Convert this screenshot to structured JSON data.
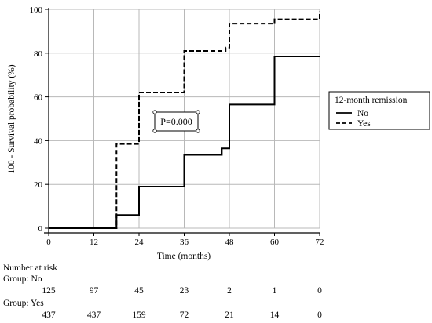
{
  "chart_data": {
    "type": "line",
    "step": true,
    "xlabel": "Time (months)",
    "ylabel": "100 - Survival probability (%)",
    "xlim": [
      0,
      72
    ],
    "ylim": [
      0,
      100
    ],
    "xticks": [
      0,
      12,
      24,
      36,
      48,
      60,
      72
    ],
    "yticks": [
      0,
      20,
      40,
      60,
      80,
      100
    ],
    "grid": true,
    "legend": {
      "title": "12-month remission",
      "placement": "right",
      "entries": [
        "No",
        "Yes"
      ]
    },
    "annotation": "P=0.000",
    "series": [
      {
        "name": "No",
        "line_style": "solid",
        "x": [
          0,
          18,
          18,
          24,
          24,
          36,
          36,
          46,
          46,
          48,
          48,
          60,
          60,
          72
        ],
        "y": [
          0,
          0,
          6,
          6,
          19,
          19,
          33.5,
          33.5,
          36.5,
          36.5,
          56.5,
          56.5,
          78.5,
          78.5
        ]
      },
      {
        "name": "Yes",
        "line_style": "dashed",
        "x": [
          0,
          18,
          18,
          24,
          24,
          36,
          36,
          47,
          47,
          48,
          48,
          60,
          60,
          72,
          72
        ],
        "y": [
          0,
          0,
          38.5,
          38.5,
          62,
          62,
          81,
          81,
          82.5,
          82.5,
          93.5,
          93.5,
          95.5,
          95.5,
          99
        ]
      }
    ],
    "risk_table": {
      "title": "Number at risk",
      "groups": [
        {
          "label": "Group: No",
          "values": [
            "125",
            "97",
            "45",
            "23",
            "2",
            "1",
            "0"
          ]
        },
        {
          "label": "Group: Yes",
          "values": [
            "437",
            "437",
            "159",
            "72",
            "21",
            "14",
            "0"
          ]
        }
      ]
    }
  }
}
